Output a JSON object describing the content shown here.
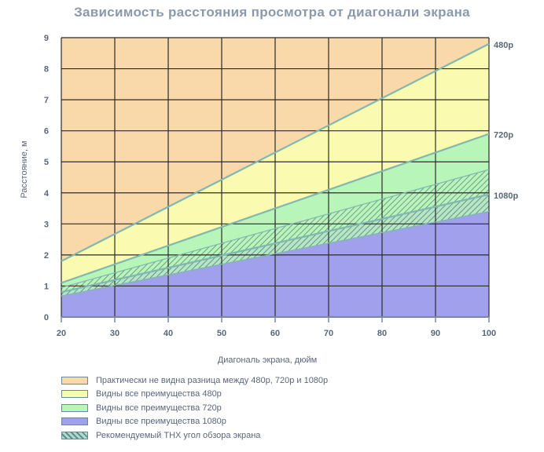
{
  "chart_data": {
    "type": "area",
    "title": "Зависимость расстояния просмотра от диагонали экрана",
    "xlabel": "Диагональ экрана, дюйм",
    "ylabel": "Расстояние, м",
    "xlim": [
      20,
      100
    ],
    "ylim": [
      0,
      9
    ],
    "x_ticks": [
      "20",
      "30",
      "40",
      "50",
      "60",
      "70",
      "80",
      "90",
      "100"
    ],
    "y_ticks": [
      "0",
      "1",
      "2",
      "3",
      "4",
      "5",
      "6",
      "7",
      "8",
      "9"
    ],
    "grid": true,
    "series": [
      {
        "name": "480p",
        "x": [
          20,
          100
        ],
        "y": [
          1.8,
          8.8
        ]
      },
      {
        "name": "720p",
        "x": [
          20,
          100
        ],
        "y": [
          1.1,
          5.9
        ]
      },
      {
        "name": "1080p",
        "x": [
          20,
          100
        ],
        "y": [
          0.8,
          3.95
        ]
      },
      {
        "name": "THX upper",
        "x": [
          20,
          100
        ],
        "y": [
          0.95,
          4.75
        ]
      },
      {
        "name": "THX lower",
        "x": [
          20,
          100
        ],
        "y": [
          0.68,
          3.4
        ]
      }
    ],
    "legend": [
      {
        "label": "Практически не видна разница между 480p, 720p и 1080p",
        "color": "#f9d9a9"
      },
      {
        "label": "Видны все преимущества 480p",
        "color": "#fafab0"
      },
      {
        "label": "Видны все преимущества 720p",
        "color": "#b8f5b8"
      },
      {
        "label": "Видны все преимущества 1080p",
        "color": "#a0a0ec"
      },
      {
        "label": "Рекомендуемый THX угол обзора экрана",
        "color": "#a7e0d0"
      }
    ],
    "legend_position": "bottom-left"
  },
  "colors": {
    "orange": "#f9d9a9",
    "yellow": "#fafab0",
    "green": "#b8f5b8",
    "purple": "#a0a0ec",
    "line": "#7fb8b0",
    "grid": "#2b2b2b",
    "text": "#5a6678"
  }
}
